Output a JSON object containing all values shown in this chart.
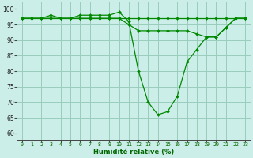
{
  "xlabel": "Humidité relative (%)",
  "background_color": "#cceee8",
  "grid_color": "#99ccbb",
  "line_color": "#008800",
  "marker_color": "#008800",
  "ylim": [
    58,
    102
  ],
  "xlim": [
    -0.5,
    23.5
  ],
  "yticks": [
    60,
    65,
    70,
    75,
    80,
    85,
    90,
    95,
    100
  ],
  "xtick_labels": [
    "0",
    "1",
    "2",
    "3",
    "4",
    "5",
    "6",
    "7",
    "8",
    "9",
    "10",
    "11",
    "12",
    "13",
    "14",
    "15",
    "16",
    "17",
    "18",
    "19",
    "20",
    "21",
    "22",
    "23"
  ],
  "series": [
    [
      97,
      97,
      97,
      97,
      97,
      97,
      97,
      97,
      97,
      97,
      97,
      97,
      97,
      97,
      97,
      97,
      97,
      97,
      97,
      97,
      97,
      97,
      97,
      97
    ],
    [
      97,
      97,
      97,
      98,
      97,
      97,
      98,
      98,
      98,
      98,
      99,
      96,
      80,
      70,
      66,
      67,
      72,
      83,
      87,
      91,
      91,
      94,
      97,
      97
    ],
    [
      97,
      97,
      97,
      97,
      97,
      97,
      97,
      97,
      97,
      97,
      97,
      95,
      93,
      93,
      93,
      93,
      93,
      93,
      92,
      91,
      91,
      94,
      97,
      97
    ]
  ]
}
